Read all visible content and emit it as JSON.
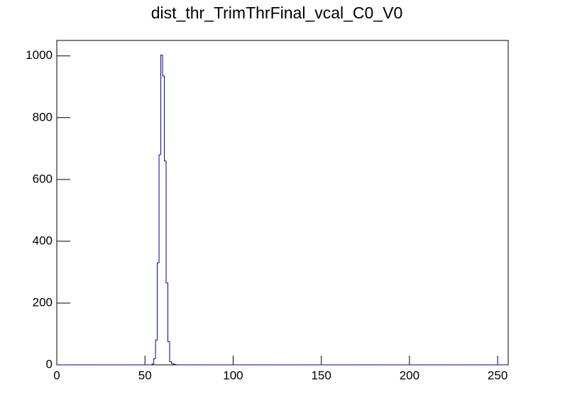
{
  "chart_data": {
    "type": "histogram",
    "title": "dist_thr_TrimThrFinal_vcal_C0_V0",
    "bins": [
      0,
      1,
      2,
      3,
      4,
      5,
      6,
      7,
      8,
      9,
      10,
      11,
      12,
      13,
      14,
      15,
      16,
      17,
      18,
      19,
      20,
      21,
      22,
      23,
      24,
      25,
      26,
      27,
      28,
      29,
      30,
      31,
      32,
      33,
      34,
      35,
      36,
      37,
      38,
      39,
      40,
      41,
      42,
      43,
      44,
      45,
      46,
      47,
      48,
      49,
      50,
      51,
      52,
      53,
      54,
      55,
      56,
      57,
      58,
      59,
      60,
      61,
      62,
      63,
      64,
      65,
      66,
      67,
      68,
      69,
      70,
      71,
      72,
      73,
      74,
      75,
      76,
      77,
      78,
      79,
      80,
      81,
      82,
      83,
      84,
      85,
      86,
      87,
      88,
      89,
      90,
      91,
      92,
      93,
      94,
      95,
      96,
      97,
      98,
      99,
      100,
      101,
      102,
      103,
      104,
      105,
      106,
      107,
      108,
      109,
      110,
      111,
      112,
      113,
      114,
      115,
      116,
      117,
      118,
      119,
      120,
      121,
      122,
      123,
      124,
      125,
      126,
      127,
      128,
      129,
      130,
      131,
      132,
      133,
      134,
      135,
      136,
      137,
      138,
      139,
      140,
      141,
      142,
      143,
      144,
      145,
      146,
      147,
      148,
      149,
      150,
      151,
      152,
      153,
      154,
      155,
      156,
      157,
      158,
      159,
      160,
      161,
      162,
      163,
      164,
      165,
      166,
      167,
      168,
      169,
      170,
      171,
      172,
      173,
      174,
      175,
      176,
      177,
      178,
      179,
      180,
      181,
      182,
      183,
      184,
      185,
      186,
      187,
      188,
      189,
      190,
      191,
      192,
      193,
      194,
      195,
      196,
      197,
      198,
      199,
      200,
      201,
      202,
      203,
      204,
      205,
      206,
      207,
      208,
      209,
      210,
      211,
      212,
      213,
      214,
      215,
      216,
      217,
      218,
      219,
      220,
      221,
      222,
      223,
      224,
      225,
      226,
      227,
      228,
      229,
      230,
      231,
      232,
      233,
      234,
      235,
      236,
      237,
      238,
      239,
      240,
      241,
      242,
      243,
      244,
      245,
      246,
      247,
      248,
      249,
      250,
      251,
      252,
      253,
      254,
      255,
      256
    ],
    "values": [
      0,
      0,
      0,
      0,
      0,
      0,
      0,
      0,
      0,
      0,
      0,
      0,
      0,
      0,
      0,
      0,
      0,
      0,
      0,
      0,
      0,
      0,
      0,
      0,
      0,
      0,
      0,
      0,
      0,
      0,
      0,
      0,
      0,
      0,
      0,
      0,
      0,
      0,
      0,
      0,
      0,
      0,
      0,
      0,
      0,
      0,
      0,
      0,
      0,
      0,
      0,
      0,
      0,
      0,
      3,
      20,
      80,
      330,
      680,
      1003,
      935,
      660,
      265,
      75,
      10,
      5,
      2,
      1,
      0,
      0,
      0,
      0,
      0,
      0,
      0,
      0,
      0,
      0,
      0,
      0,
      0,
      0,
      0,
      0,
      0,
      0,
      0,
      0,
      0,
      0,
      0,
      0,
      0,
      0,
      0,
      0,
      0,
      0,
      0,
      0,
      0,
      0,
      0,
      0,
      0,
      0,
      0,
      0,
      0,
      0,
      0,
      0,
      0,
      0,
      0,
      0,
      0,
      0,
      0,
      0,
      0,
      0,
      0,
      0,
      0,
      0,
      0,
      0,
      0,
      0,
      0,
      0,
      0,
      0,
      0,
      0,
      0,
      0,
      0,
      0,
      0,
      0,
      0,
      0,
      0,
      0,
      0,
      0,
      0,
      0,
      0,
      0,
      0,
      0,
      0,
      0,
      0,
      0,
      0,
      0,
      0,
      0,
      0,
      0,
      0,
      0,
      0,
      0,
      0,
      0,
      0,
      0,
      0,
      0,
      0,
      0,
      0,
      0,
      0,
      0,
      0,
      0,
      0,
      0,
      0,
      0,
      0,
      0,
      0,
      0,
      0,
      0,
      0,
      0,
      0,
      0,
      0,
      0,
      0,
      0,
      0,
      0,
      0,
      0,
      0,
      0,
      0,
      0,
      0,
      0,
      0,
      0,
      0,
      0,
      0,
      0,
      0,
      0,
      0,
      0,
      0,
      0,
      0,
      0,
      0,
      0,
      0,
      0,
      0,
      0,
      0,
      0,
      0,
      0,
      0,
      0,
      0,
      0,
      0,
      0,
      0,
      0,
      0,
      0,
      0,
      0,
      0,
      0,
      0,
      0,
      0,
      0,
      0,
      0,
      0,
      0
    ],
    "color": "#000099",
    "xlim": [
      0,
      256
    ],
    "xticks": [
      0,
      50,
      100,
      150,
      200,
      250
    ],
    "ylim": [
      0,
      1050
    ],
    "yticks": [
      0,
      200,
      400,
      600,
      800,
      1000
    ]
  }
}
